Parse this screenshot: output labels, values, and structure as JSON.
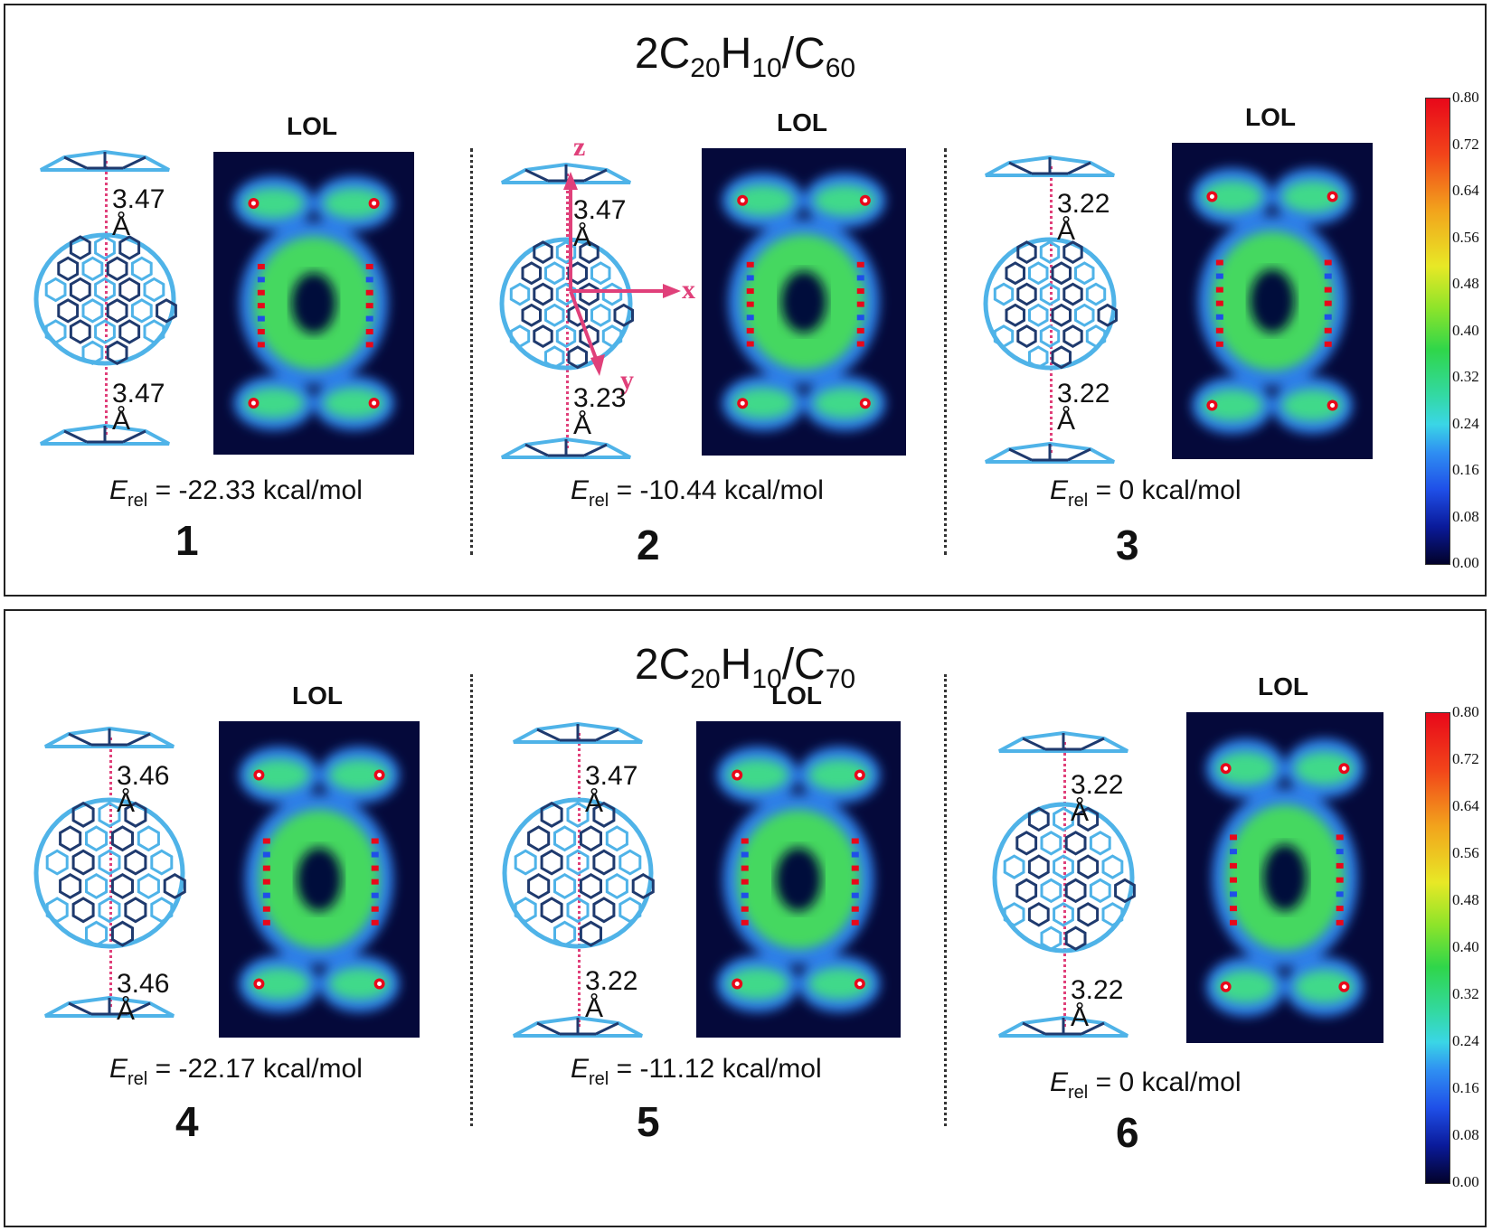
{
  "panels": [
    {
      "title_main": "2C",
      "title_sub1": "20",
      "title_mid": "H",
      "title_sub2": "10",
      "title_slash": "/C",
      "title_sub3": "60",
      "complexes": [
        {
          "number": "1",
          "lol_label": "LOL",
          "dist_top": "3.47 Å",
          "dist_bottom": "3.47 Å",
          "e_label": "E",
          "e_sub": "rel",
          "e_value": "= -22.33 kcal/mol"
        },
        {
          "number": "2",
          "lol_label": "LOL",
          "dist_top": "3.47 Å",
          "dist_bottom": "3.23 Å",
          "e_label": "E",
          "e_sub": "rel",
          "e_value": "= -10.44 kcal/mol",
          "axes": [
            "z",
            "x",
            "y"
          ]
        },
        {
          "number": "3",
          "lol_label": "LOL",
          "dist_top": "3.22 Å",
          "dist_bottom": "3.22 Å",
          "e_label": "E",
          "e_sub": "rel",
          "e_value": "= 0 kcal/mol"
        }
      ]
    },
    {
      "title_main": "2C",
      "title_sub1": "20",
      "title_mid": "H",
      "title_sub2": "10",
      "title_slash": "/C",
      "title_sub3": "70",
      "complexes": [
        {
          "number": "4",
          "lol_label": "LOL",
          "dist_top": "3.46 Å",
          "dist_bottom": "3.46 Å",
          "e_label": "E",
          "e_sub": "rel",
          "e_value": "= -22.17 kcal/mol"
        },
        {
          "number": "5",
          "lol_label": "LOL",
          "dist_top": "3.47 Å",
          "dist_bottom": "3.22 Å",
          "e_label": "E",
          "e_sub": "rel",
          "e_value": "= -11.12 kcal/mol"
        },
        {
          "number": "6",
          "lol_label": "LOL",
          "dist_top": "3.22 Å",
          "dist_bottom": "3.22 Å",
          "e_label": "E",
          "e_sub": "rel",
          "e_value": "= 0 kcal/mol"
        }
      ]
    }
  ],
  "colorbar_ticks": [
    "0.80",
    "0.72",
    "0.64",
    "0.56",
    "0.48",
    "0.40",
    "0.32",
    "0.24",
    "0.16",
    "0.08",
    "0.00"
  ],
  "colors": {
    "bond_light": "#4fb3e8",
    "bond_dark": "#1f3a6e",
    "distance_line": "#e0407a",
    "map_background": "#05093a"
  }
}
